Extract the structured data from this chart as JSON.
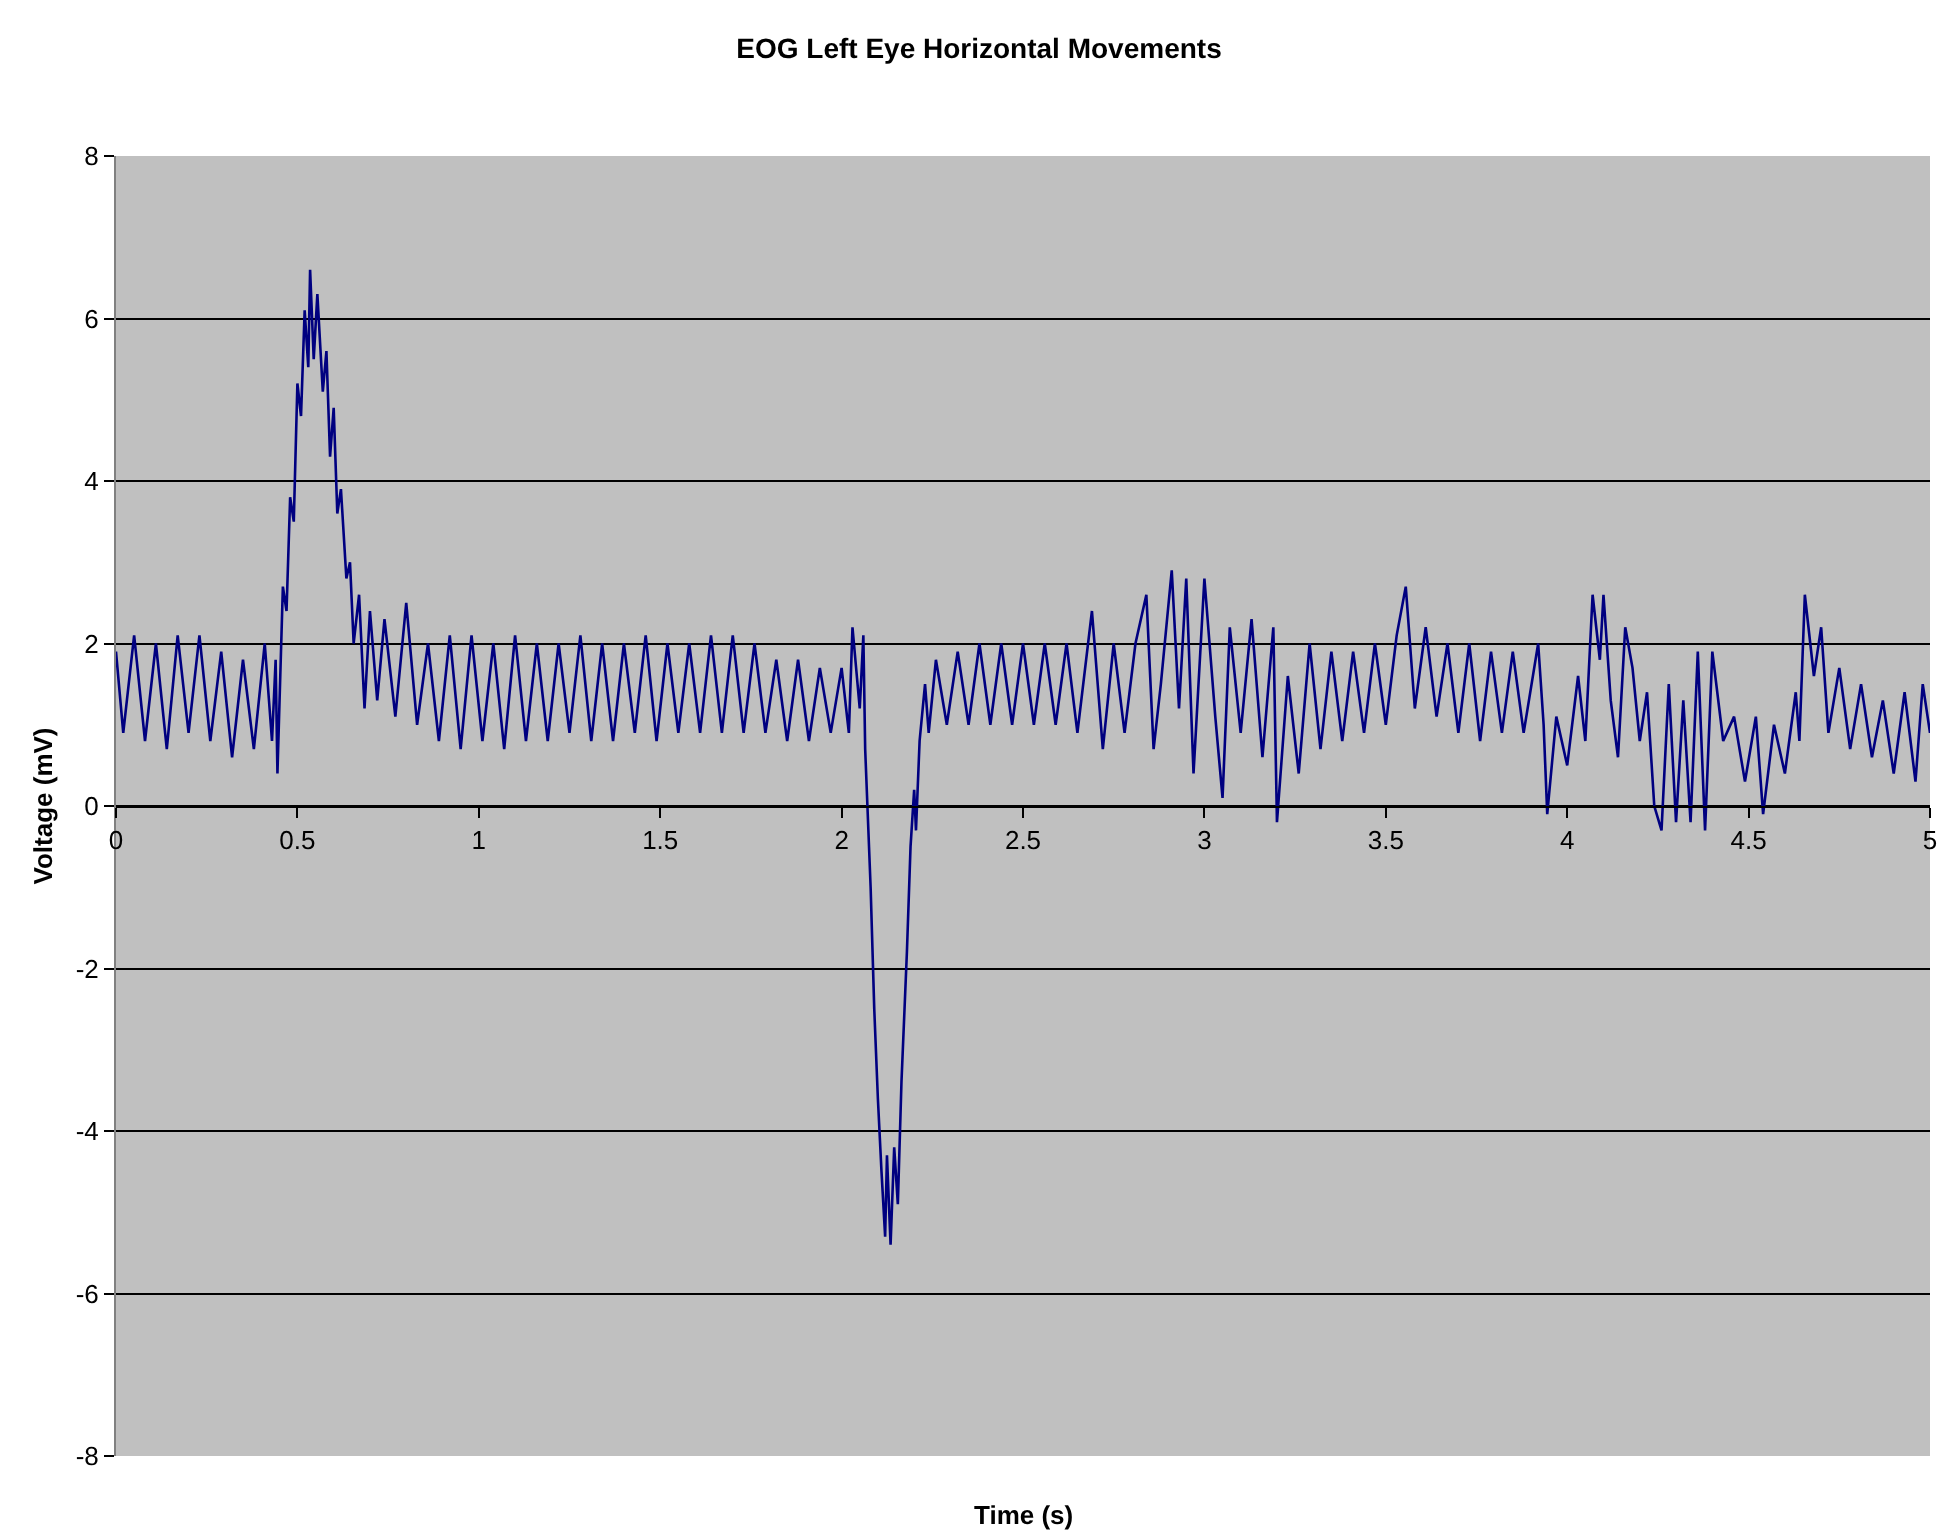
{
  "chart_data": {
    "type": "line",
    "title": "EOG Left Eye Horizontal Movements",
    "xlabel": "Time (s)",
    "ylabel": "Voltage (mV)",
    "xlim": [
      0,
      5
    ],
    "xticks": [
      0,
      0.5,
      1,
      1.5,
      2,
      2.5,
      3,
      3.5,
      4,
      4.5,
      5
    ],
    "ylim": [
      -8,
      8
    ],
    "yticks": [
      -8,
      -6,
      -4,
      -2,
      0,
      2,
      4,
      6,
      8
    ],
    "grid": "y",
    "marker": "none",
    "line_style": "solid",
    "series": [
      {
        "color": "#000080",
        "x": [
          0,
          0.02,
          0.05,
          0.08,
          0.11,
          0.14,
          0.17,
          0.2,
          0.23,
          0.26,
          0.29,
          0.32,
          0.35,
          0.38,
          0.41,
          0.43,
          0.44,
          0.445,
          0.46,
          0.47,
          0.48,
          0.49,
          0.5,
          0.51,
          0.52,
          0.53,
          0.535,
          0.545,
          0.555,
          0.57,
          0.58,
          0.59,
          0.6,
          0.61,
          0.62,
          0.635,
          0.645,
          0.655,
          0.67,
          0.685,
          0.7,
          0.72,
          0.74,
          0.77,
          0.8,
          0.83,
          0.86,
          0.89,
          0.92,
          0.95,
          0.98,
          1.01,
          1.04,
          1.07,
          1.1,
          1.13,
          1.16,
          1.19,
          1.22,
          1.25,
          1.28,
          1.31,
          1.34,
          1.37,
          1.4,
          1.43,
          1.46,
          1.49,
          1.52,
          1.55,
          1.58,
          1.61,
          1.64,
          1.67,
          1.7,
          1.73,
          1.76,
          1.79,
          1.82,
          1.85,
          1.88,
          1.91,
          1.94,
          1.97,
          2.0,
          2.02,
          2.03,
          2.05,
          2.06,
          2.065,
          2.08,
          2.09,
          2.1,
          2.11,
          2.12,
          2.125,
          2.135,
          2.145,
          2.155,
          2.165,
          2.18,
          2.19,
          2.2,
          2.205,
          2.215,
          2.23,
          2.24,
          2.26,
          2.29,
          2.32,
          2.35,
          2.38,
          2.41,
          2.44,
          2.47,
          2.5,
          2.53,
          2.56,
          2.59,
          2.62,
          2.65,
          2.69,
          2.72,
          2.75,
          2.78,
          2.81,
          2.84,
          2.86,
          2.88,
          2.91,
          2.93,
          2.95,
          2.97,
          3.0,
          3.03,
          3.05,
          3.07,
          3.1,
          3.13,
          3.16,
          3.19,
          3.2,
          3.23,
          3.26,
          3.29,
          3.32,
          3.35,
          3.38,
          3.41,
          3.44,
          3.47,
          3.5,
          3.53,
          3.555,
          3.58,
          3.61,
          3.64,
          3.67,
          3.7,
          3.73,
          3.76,
          3.79,
          3.82,
          3.85,
          3.88,
          3.92,
          3.935,
          3.945,
          3.97,
          4.0,
          4.03,
          4.05,
          4.07,
          4.09,
          4.1,
          4.12,
          4.14,
          4.16,
          4.18,
          4.2,
          4.22,
          4.24,
          4.26,
          4.28,
          4.3,
          4.32,
          4.34,
          4.36,
          4.38,
          4.4,
          4.43,
          4.46,
          4.49,
          4.52,
          4.54,
          4.57,
          4.6,
          4.63,
          4.64,
          4.655,
          4.68,
          4.7,
          4.72,
          4.75,
          4.78,
          4.81,
          4.84,
          4.87,
          4.9,
          4.93,
          4.96,
          4.98,
          5.0
        ],
        "values": [
          1.9,
          0.9,
          2.1,
          0.8,
          2.0,
          0.7,
          2.1,
          0.9,
          2.1,
          0.8,
          1.9,
          0.6,
          1.8,
          0.7,
          2.0,
          0.8,
          1.8,
          0.4,
          2.7,
          2.4,
          3.8,
          3.5,
          5.2,
          4.8,
          6.1,
          5.4,
          6.6,
          5.5,
          6.3,
          5.1,
          5.6,
          4.3,
          4.9,
          3.6,
          3.9,
          2.8,
          3.0,
          2.0,
          2.6,
          1.2,
          2.4,
          1.3,
          2.3,
          1.1,
          2.5,
          1.0,
          2.0,
          0.8,
          2.1,
          0.7,
          2.1,
          0.8,
          2.0,
          0.7,
          2.1,
          0.8,
          2.0,
          0.8,
          2.0,
          0.9,
          2.1,
          0.8,
          2.0,
          0.8,
          2.0,
          0.9,
          2.1,
          0.8,
          2.0,
          0.9,
          2.0,
          0.9,
          2.1,
          0.9,
          2.1,
          0.9,
          2.0,
          0.9,
          1.8,
          0.8,
          1.8,
          0.8,
          1.7,
          0.9,
          1.7,
          0.9,
          2.2,
          1.2,
          2.1,
          0.7,
          -1.0,
          -2.5,
          -3.6,
          -4.5,
          -5.3,
          -4.3,
          -5.4,
          -4.2,
          -4.9,
          -3.4,
          -1.8,
          -0.5,
          0.2,
          -0.3,
          0.8,
          1.5,
          0.9,
          1.8,
          1.0,
          1.9,
          1.0,
          2.0,
          1.0,
          2.0,
          1.0,
          2.0,
          1.0,
          2.0,
          1.0,
          2.0,
          0.9,
          2.4,
          0.7,
          2.0,
          0.9,
          2.0,
          2.6,
          0.7,
          1.5,
          2.9,
          1.2,
          2.8,
          0.4,
          2.8,
          1.1,
          0.1,
          2.2,
          0.9,
          2.3,
          0.6,
          2.2,
          -0.2,
          1.6,
          0.4,
          2.0,
          0.7,
          1.9,
          0.8,
          1.9,
          0.9,
          2.0,
          1.0,
          2.1,
          2.7,
          1.2,
          2.2,
          1.1,
          2.0,
          0.9,
          2.0,
          0.8,
          1.9,
          0.9,
          1.9,
          0.9,
          2.0,
          1.0,
          -0.1,
          1.1,
          0.5,
          1.6,
          0.8,
          2.6,
          1.8,
          2.6,
          1.3,
          0.6,
          2.2,
          1.7,
          0.8,
          1.4,
          0.0,
          -0.3,
          1.5,
          -0.2,
          1.3,
          -0.2,
          1.9,
          -0.3,
          1.9,
          0.8,
          1.1,
          0.3,
          1.1,
          -0.1,
          1.0,
          0.4,
          1.4,
          0.8,
          2.6,
          1.6,
          2.2,
          0.9,
          1.7,
          0.7,
          1.5,
          0.6,
          1.3,
          0.4,
          1.4,
          0.3,
          1.5,
          0.9
        ]
      }
    ]
  }
}
